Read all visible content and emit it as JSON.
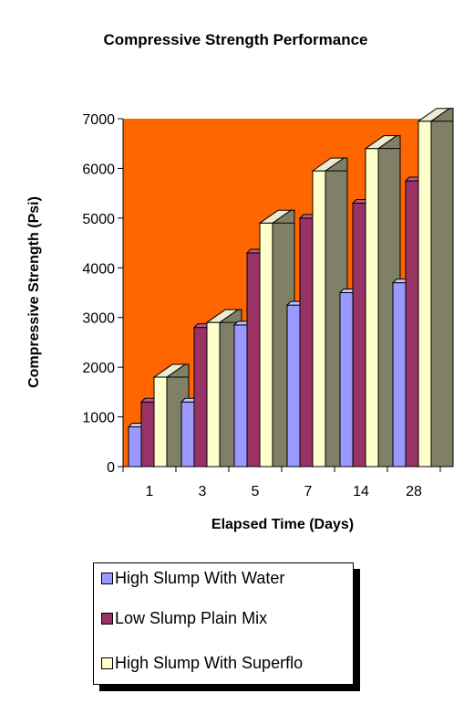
{
  "chart_data": {
    "type": "bar",
    "title": "Compressive Strength Performance",
    "xlabel": "Elapsed Time (Days)",
    "ylabel": "Compressive Strength (Psi)",
    "categories": [
      "1",
      "3",
      "5",
      "7",
      "14",
      "28"
    ],
    "series": [
      {
        "name": "High Slump With Water",
        "values": [
          800,
          1300,
          2850,
          3250,
          3500,
          3700
        ]
      },
      {
        "name": "Low Slump Plain Mix",
        "values": [
          1300,
          2800,
          4300,
          5000,
          5300,
          5750
        ]
      },
      {
        "name": "High Slump With Superflo",
        "values": [
          1800,
          2900,
          4900,
          5950,
          6400,
          6950
        ]
      }
    ],
    "ylim": [
      0,
      7000
    ],
    "yticks": [
      "0",
      "1000",
      "2000",
      "3000",
      "4000",
      "5000",
      "6000",
      "7000"
    ],
    "grid": false,
    "legend_position": "bottom",
    "colors": {
      "plot_background": "#FF6600",
      "series": [
        "#9999FF",
        "#993366",
        "#FFFFCC"
      ],
      "series_top": [
        "#C2C2FF",
        "#B85A84",
        "#FFFFE8"
      ],
      "series_side": [
        "#6C6CB8",
        "#6E2449",
        "#7F7F6F"
      ],
      "depth_block": "#808066",
      "depth_block_top": "#ECECD0"
    }
  }
}
